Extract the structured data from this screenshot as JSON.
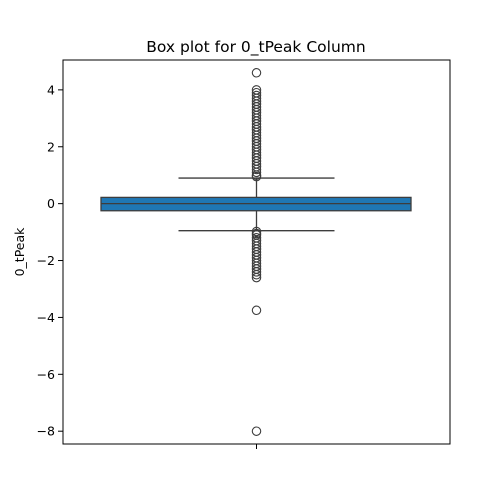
{
  "chart_data": {
    "type": "box",
    "title": "Box plot for 0_tPeak Column",
    "xlabel": "",
    "ylabel": "0_tPeak",
    "ylim": [
      -8.45,
      5.05
    ],
    "yticks": [
      {
        "value": 4,
        "label": "4"
      },
      {
        "value": 2,
        "label": "2"
      },
      {
        "value": 0,
        "label": "0"
      },
      {
        "value": -2,
        "label": "−2"
      },
      {
        "value": -4,
        "label": "−4"
      },
      {
        "value": -6,
        "label": "−6"
      },
      {
        "value": -8,
        "label": "−8"
      }
    ],
    "grid": false,
    "box": {
      "q1": -0.25,
      "median": 0.0,
      "q3": 0.22,
      "whisker_low": -0.95,
      "whisker_high": 0.9,
      "color": "#1f77b4",
      "edge_color": "#3d3d3d"
    },
    "outliers_high": [
      4.6,
      4.0,
      3.9,
      3.8,
      3.7,
      3.6,
      3.5,
      3.4,
      3.3,
      3.2,
      3.1,
      3.0,
      2.9,
      2.8,
      2.7,
      2.6,
      2.5,
      2.4,
      2.3,
      2.2,
      2.1,
      2.0,
      1.9,
      1.8,
      1.7,
      1.6,
      1.5,
      1.4,
      1.3,
      1.2,
      1.1,
      1.0,
      0.95
    ],
    "outliers_low": [
      -0.98,
      -1.05,
      -1.1,
      -1.2,
      -1.3,
      -1.4,
      -1.5,
      -1.6,
      -1.7,
      -1.8,
      -1.9,
      -2.0,
      -2.1,
      -2.2,
      -2.3,
      -2.4,
      -2.5,
      -2.6,
      -3.75,
      -8.0
    ]
  }
}
